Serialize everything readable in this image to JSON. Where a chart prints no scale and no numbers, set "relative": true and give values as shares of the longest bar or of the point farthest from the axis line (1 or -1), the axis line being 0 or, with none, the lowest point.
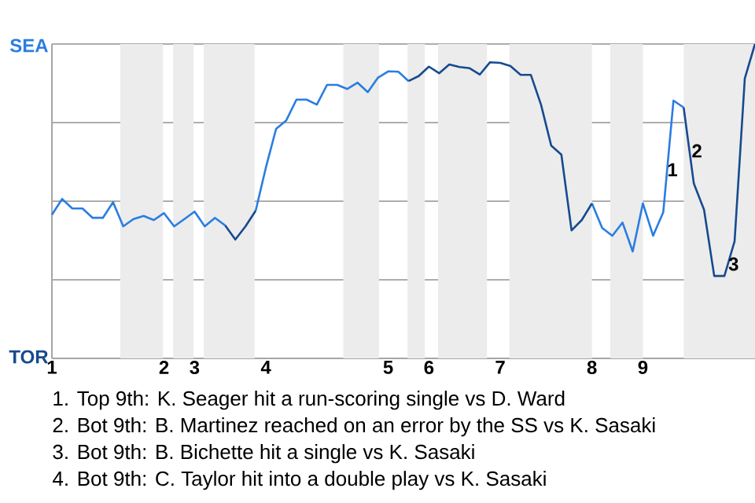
{
  "chart_data": {
    "type": "line",
    "relative": true,
    "categories": [
      "1",
      null,
      null,
      null,
      null,
      null,
      null,
      null,
      null,
      null,
      null,
      "2",
      null,
      null,
      "3",
      null,
      null,
      null,
      null,
      null,
      null,
      "4",
      null,
      null,
      null,
      null,
      null,
      null,
      null,
      null,
      null,
      null,
      null,
      "5",
      null,
      null,
      null,
      "6",
      null,
      null,
      null,
      null,
      null,
      null,
      "7",
      null,
      null,
      null,
      null,
      null,
      null,
      null,
      null,
      "8",
      null,
      null,
      null,
      null,
      "9",
      null,
      null,
      null,
      null,
      null,
      null,
      null,
      null,
      null,
      null,
      null
    ],
    "series": [
      {
        "color": "#2a7de1",
        "values": [
          0.457,
          0.507,
          0.477,
          0.477,
          0.447,
          0.447,
          0.497,
          0.42,
          0.443,
          0.453,
          0.44,
          0.462,
          0.42,
          0.443,
          0.467,
          0.42,
          0.447,
          0.423,
          null,
          null,
          0.47,
          0.607,
          0.73,
          0.757,
          0.823,
          0.823,
          0.807,
          0.87,
          0.87,
          0.857,
          0.877,
          0.847,
          0.893,
          0.913,
          0.912,
          0.882,
          null,
          null,
          null,
          null,
          null,
          null,
          null,
          null,
          null,
          null,
          null,
          null,
          null,
          null,
          null,
          null,
          null,
          0.493,
          0.415,
          0.39,
          0.432,
          0.34,
          0.493,
          0.39,
          0.465,
          0.82,
          0.798,
          null,
          null,
          null,
          null,
          null,
          null,
          null
        ]
      },
      {
        "color": "#174a8f",
        "values": [
          null,
          null,
          null,
          null,
          null,
          null,
          null,
          null,
          null,
          null,
          null,
          null,
          null,
          null,
          null,
          null,
          null,
          0.423,
          0.378,
          0.42,
          0.47,
          null,
          null,
          null,
          null,
          null,
          null,
          null,
          null,
          null,
          null,
          null,
          null,
          null,
          null,
          0.882,
          0.898,
          0.928,
          0.907,
          0.935,
          0.927,
          0.923,
          0.903,
          0.942,
          0.94,
          0.93,
          0.902,
          0.902,
          0.807,
          0.677,
          0.648,
          0.407,
          0.44,
          0.493,
          null,
          null,
          null,
          null,
          null,
          null,
          null,
          null,
          0.798,
          0.556,
          0.473,
          0.262,
          0.262,
          0.373,
          0.89,
          1
        ]
      }
    ],
    "grid": "y",
    "marker": "none",
    "line_style": "solid",
    "annotations": [
      "SEA",
      "TOR",
      "1",
      "2",
      "3",
      "1. Top 9th: K. Seager hit a run-scoring single vs D. Ward",
      "2. Bot 9th: B. Martinez reached on an error by the SS vs K. Sasaki",
      "3. Bot 9th: B. Bichette hit a single vs K. Sasaki",
      "4. Bot 9th: C. Taylor hit into a double play vs K. Sasaki"
    ]
  }
}
